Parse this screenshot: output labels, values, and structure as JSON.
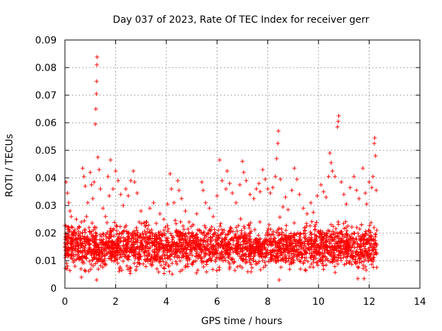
{
  "chart_data": {
    "type": "scatter",
    "title": "Day 037 of 2023, Rate Of TEC Index for receiver gerr",
    "xlabel": "GPS time / hours",
    "ylabel": "ROTI / TECUs",
    "xlim": [
      0,
      14
    ],
    "ylim": [
      0,
      0.09
    ],
    "x_ticks": [
      "0",
      "2",
      "4",
      "6",
      "8",
      "10",
      "12",
      "14"
    ],
    "y_ticks": [
      "0",
      "0.01",
      "0.02",
      "0.03",
      "0.04",
      "0.05",
      "0.06",
      "0.07",
      "0.08",
      "0.09"
    ],
    "grid": true,
    "marker": "plus",
    "marker_color": "#ff0000",
    "points": [
      [
        0.05,
        0.0385
      ],
      [
        0.1,
        0.0345
      ],
      [
        0.15,
        0.031
      ],
      [
        0.2,
        0.028
      ],
      [
        0.25,
        0.026
      ],
      [
        0.3,
        0.022
      ],
      [
        0.35,
        0.019
      ],
      [
        0.45,
        0.025
      ],
      [
        0.55,
        0.018
      ],
      [
        0.65,
        0.024
      ],
      [
        0.7,
        0.0435
      ],
      [
        0.75,
        0.0405
      ],
      [
        0.8,
        0.037
      ],
      [
        0.85,
        0.026
      ],
      [
        0.9,
        0.031
      ],
      [
        0.95,
        0.022
      ],
      [
        1.0,
        0.042
      ],
      [
        1.05,
        0.0375
      ],
      [
        1.1,
        0.0325
      ],
      [
        1.15,
        0.0385
      ],
      [
        1.2,
        0.0595
      ],
      [
        1.22,
        0.065
      ],
      [
        1.24,
        0.0705
      ],
      [
        1.25,
        0.075
      ],
      [
        1.26,
        0.081
      ],
      [
        1.27,
        0.0838
      ],
      [
        1.3,
        0.0475
      ],
      [
        1.35,
        0.043
      ],
      [
        1.4,
        0.036
      ],
      [
        1.5,
        0.029
      ],
      [
        1.6,
        0.026
      ],
      [
        1.7,
        0.0405
      ],
      [
        1.75,
        0.0335
      ],
      [
        1.8,
        0.0465
      ],
      [
        1.9,
        0.036
      ],
      [
        2.0,
        0.0425
      ],
      [
        2.1,
        0.039
      ],
      [
        2.2,
        0.034
      ],
      [
        2.3,
        0.03
      ],
      [
        2.4,
        0.036
      ],
      [
        2.5,
        0.0335
      ],
      [
        2.6,
        0.039
      ],
      [
        2.7,
        0.0425
      ],
      [
        2.75,
        0.0385
      ],
      [
        2.85,
        0.0345
      ],
      [
        3.0,
        0.028
      ],
      [
        3.2,
        0.024
      ],
      [
        3.35,
        0.029
      ],
      [
        3.5,
        0.031
      ],
      [
        3.6,
        0.0235
      ],
      [
        3.75,
        0.027
      ],
      [
        3.9,
        0.025
      ],
      [
        4.05,
        0.0305
      ],
      [
        4.15,
        0.0415
      ],
      [
        4.2,
        0.036
      ],
      [
        4.3,
        0.031
      ],
      [
        4.45,
        0.039
      ],
      [
        4.5,
        0.0355
      ],
      [
        4.6,
        0.0325
      ],
      [
        4.75,
        0.028
      ],
      [
        4.9,
        0.024
      ],
      [
        5.05,
        0.023
      ],
      [
        5.2,
        0.027
      ],
      [
        5.4,
        0.0385
      ],
      [
        5.45,
        0.0355
      ],
      [
        5.55,
        0.031
      ],
      [
        5.7,
        0.029
      ],
      [
        5.85,
        0.026
      ],
      [
        6.0,
        0.0335
      ],
      [
        6.1,
        0.0465
      ],
      [
        6.2,
        0.039
      ],
      [
        6.35,
        0.036
      ],
      [
        6.4,
        0.0425
      ],
      [
        6.5,
        0.038
      ],
      [
        6.6,
        0.0345
      ],
      [
        6.75,
        0.031
      ],
      [
        6.9,
        0.0375
      ],
      [
        7.0,
        0.046
      ],
      [
        7.05,
        0.042
      ],
      [
        7.15,
        0.039
      ],
      [
        7.3,
        0.034
      ],
      [
        7.45,
        0.0325
      ],
      [
        7.55,
        0.036
      ],
      [
        7.65,
        0.038
      ],
      [
        7.7,
        0.035
      ],
      [
        7.8,
        0.043
      ],
      [
        7.9,
        0.0395
      ],
      [
        8.0,
        0.036
      ],
      [
        8.1,
        0.0345
      ],
      [
        8.2,
        0.0365
      ],
      [
        8.3,
        0.0405
      ],
      [
        8.35,
        0.047
      ],
      [
        8.4,
        0.0525
      ],
      [
        8.42,
        0.057
      ],
      [
        8.5,
        0.0395
      ],
      [
        8.6,
        0.0295
      ],
      [
        8.7,
        0.033
      ],
      [
        8.8,
        0.0285
      ],
      [
        8.95,
        0.0355
      ],
      [
        9.05,
        0.0435
      ],
      [
        9.15,
        0.0395
      ],
      [
        9.25,
        0.034
      ],
      [
        9.4,
        0.029
      ],
      [
        9.55,
        0.027
      ],
      [
        9.7,
        0.031
      ],
      [
        9.8,
        0.0275
      ],
      [
        9.95,
        0.0335
      ],
      [
        10.1,
        0.0375
      ],
      [
        10.2,
        0.035
      ],
      [
        10.3,
        0.033
      ],
      [
        10.4,
        0.0405
      ],
      [
        10.45,
        0.049
      ],
      [
        10.5,
        0.0455
      ],
      [
        10.55,
        0.0425
      ],
      [
        10.65,
        0.0405
      ],
      [
        10.75,
        0.0585
      ],
      [
        10.78,
        0.0605
      ],
      [
        10.8,
        0.0625
      ],
      [
        10.9,
        0.0385
      ],
      [
        11.0,
        0.034
      ],
      [
        11.1,
        0.0305
      ],
      [
        11.25,
        0.0365
      ],
      [
        11.4,
        0.0405
      ],
      [
        11.5,
        0.0355
      ],
      [
        11.6,
        0.0325
      ],
      [
        11.75,
        0.0435
      ],
      [
        11.85,
        0.0345
      ],
      [
        11.9,
        0.0305
      ],
      [
        12.0,
        0.0385
      ],
      [
        12.1,
        0.0365
      ],
      [
        12.15,
        0.0405
      ],
      [
        12.2,
        0.0525
      ],
      [
        12.22,
        0.0545
      ],
      [
        12.25,
        0.048
      ],
      [
        12.28,
        0.0355
      ],
      [
        11.8,
        0.0035
      ],
      [
        11.55,
        0.0035
      ],
      [
        8.45,
        0.003
      ],
      [
        1.25,
        0.003
      ],
      [
        0.65,
        0.004
      ]
    ],
    "dense_band": {
      "description_values": "bulk of samples between 0.005 and 0.025 across 0 to 12.3 h",
      "x_range": [
        0,
        12.3
      ],
      "y_range": [
        0.005,
        0.025
      ]
    }
  }
}
